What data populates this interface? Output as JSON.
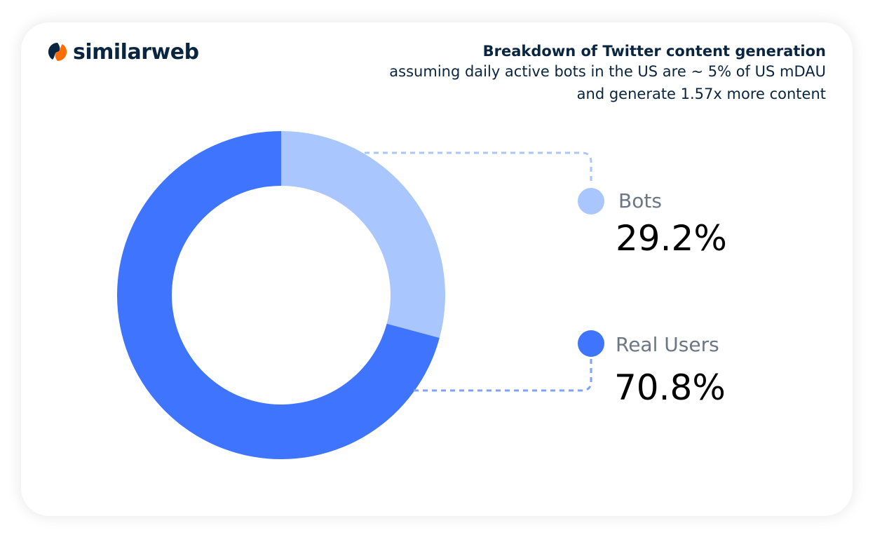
{
  "brand": {
    "name": "similarweb",
    "icon": "similarweb-logo-icon",
    "colors": {
      "dark": "#092540",
      "orange": "#ff6d00"
    }
  },
  "heading": {
    "title": "Breakdown of Twitter content generation",
    "line1": "assuming daily active bots in the US are ~ 5% of US mDAU",
    "line2": "and generate 1.57x more content"
  },
  "chart_data": {
    "type": "pie",
    "style": "donut",
    "title": "Breakdown of Twitter content generation",
    "slices": [
      {
        "label": "Bots",
        "value": 29.2,
        "display": "29.2%",
        "color": "#a9c6ff"
      },
      {
        "label": "Real Users",
        "value": 70.8,
        "display": "70.8%",
        "color": "#3e74fe"
      }
    ],
    "start": "12 o'clock",
    "direction": "clockwise",
    "legend_placement": "right"
  }
}
